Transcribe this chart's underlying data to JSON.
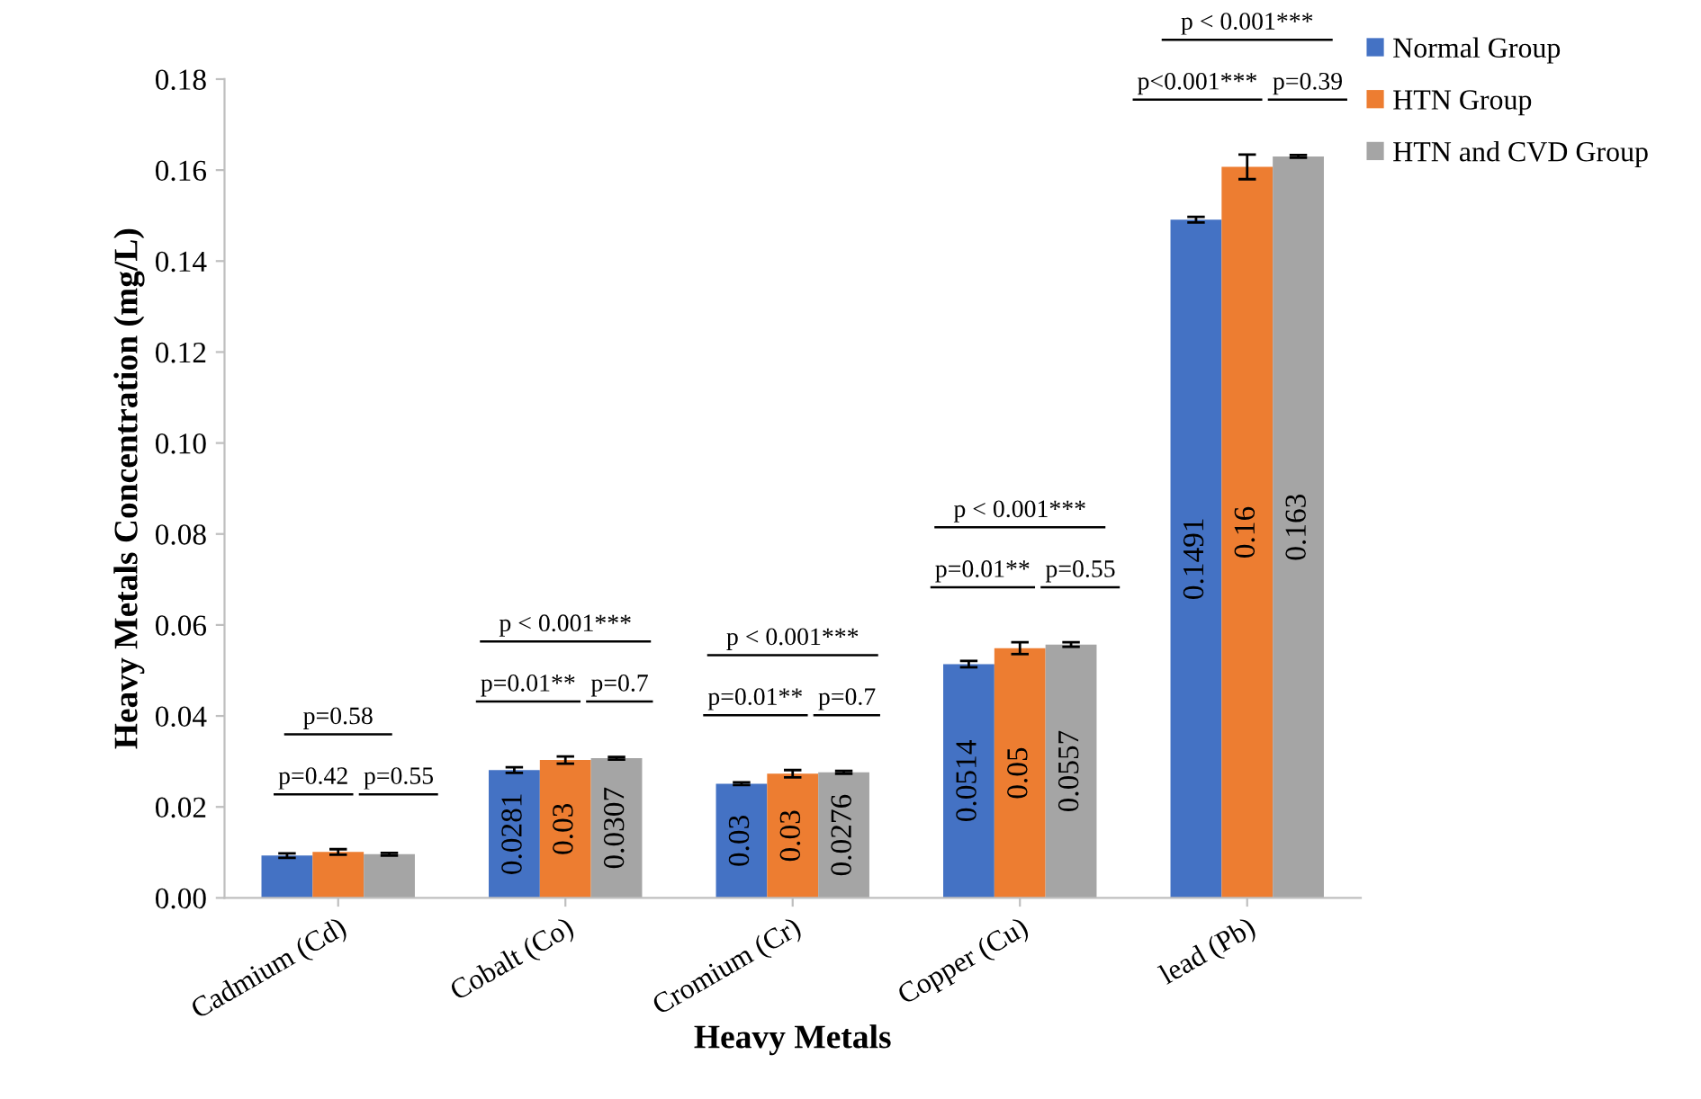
{
  "chart_data": {
    "type": "bar",
    "xlabel": "Heavy Metals",
    "ylabel": "Heavy Metals Concentration (mg/L)",
    "categories": [
      "Cadmium (Cd)",
      "Cobalt (Co)",
      "Cromium (Cr)",
      "Copper (Cu)",
      "lead (Pb)"
    ],
    "series": [
      {
        "name": "Normal Group",
        "color": "#4472c4",
        "values": [
          0.0093,
          0.0281,
          0.0251,
          0.0514,
          0.1491
        ],
        "errors": [
          0.0005,
          0.0006,
          0.0003,
          0.0007,
          0.0006
        ],
        "value_labels": [
          null,
          "0.0281",
          "0.03",
          "0.0514",
          "0.1491"
        ]
      },
      {
        "name": "HTN Group",
        "color": "#ed7d31",
        "values": [
          0.0101,
          0.0303,
          0.0273,
          0.0549,
          0.1607
        ],
        "errors": [
          0.0006,
          0.0008,
          0.0008,
          0.0013,
          0.0027
        ],
        "value_labels": [
          null,
          "0.03",
          "0.03",
          "0.05",
          "0.16"
        ]
      },
      {
        "name": "HTN and CVD Group",
        "color": "#a5a5a5",
        "values": [
          0.0096,
          0.0307,
          0.0276,
          0.0557,
          0.163
        ],
        "errors": [
          0.0003,
          0.0003,
          0.0003,
          0.0005,
          0.0003
        ],
        "value_labels": [
          null,
          "0.0307",
          "0.0276",
          "0.0557",
          "0.163"
        ]
      }
    ],
    "ylim": [
      0,
      0.18
    ],
    "yticks": [
      {
        "value": 0,
        "label": "0.00"
      },
      {
        "value": 0.02,
        "label": "0.02"
      },
      {
        "value": 0.04,
        "label": "0.04"
      },
      {
        "value": 0.06,
        "label": "0.06"
      },
      {
        "value": 0.08,
        "label": "0.08"
      },
      {
        "value": 0.1,
        "label": "0.10"
      },
      {
        "value": 0.12,
        "label": "0.12"
      },
      {
        "value": 0.14,
        "label": "0.14"
      },
      {
        "value": 0.16,
        "label": "0.16"
      },
      {
        "value": 0.18,
        "label": "0.18"
      }
    ],
    "legend": "top right",
    "grid": false,
    "annotations": [
      "p=0.42",
      "p=0.55",
      "p=0.58",
      "p=0.01**",
      "p=0.7",
      "p < 0.001***",
      "p=0.01**",
      "p=0.7",
      "p < 0.001***",
      "p=0.01**",
      "p=0.55",
      "p < 0.001***",
      "p<0.001***",
      "p=0.39",
      "p < 0.001***"
    ]
  }
}
